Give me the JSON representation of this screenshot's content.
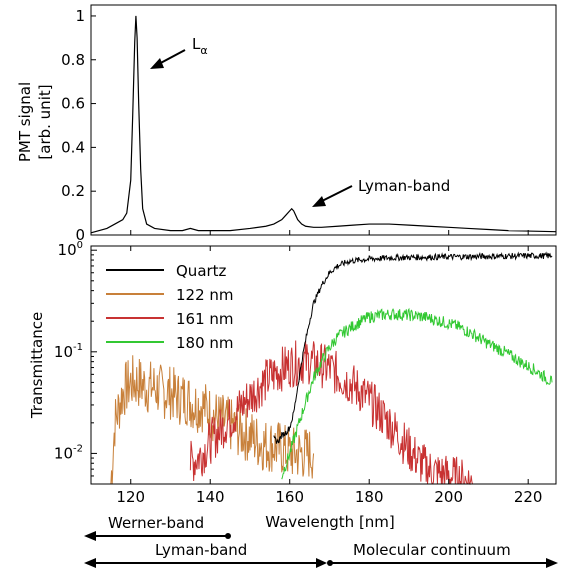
{
  "chart_data": [
    {
      "type": "line",
      "panel": "top",
      "xlim": [
        110,
        227
      ],
      "ylim": [
        0,
        1.05
      ],
      "yticks": [
        "0",
        "0.2",
        "0.4",
        "0.6",
        "0.8",
        "1"
      ],
      "ytick_values": [
        0,
        0.2,
        0.4,
        0.6,
        0.8,
        1
      ],
      "ylabel_line1": "PMT signal",
      "ylabel_line2": "[arb. unit]",
      "series": [
        {
          "color": "#000000",
          "x": [
            110,
            114,
            116,
            118,
            119,
            120,
            120.5,
            121,
            121.3,
            121.6,
            122,
            122.5,
            123,
            124,
            126,
            130,
            133,
            135,
            137,
            140,
            145,
            150,
            154,
            156,
            158,
            159,
            160,
            160.5,
            161,
            161.5,
            162,
            163,
            164,
            166,
            168,
            172,
            176,
            180,
            185,
            190,
            195,
            200,
            205,
            210,
            215,
            220,
            227
          ],
          "y": [
            0.01,
            0.03,
            0.05,
            0.07,
            0.1,
            0.25,
            0.55,
            0.88,
            1.0,
            0.9,
            0.6,
            0.3,
            0.12,
            0.05,
            0.03,
            0.02,
            0.02,
            0.03,
            0.02,
            0.02,
            0.02,
            0.03,
            0.04,
            0.05,
            0.07,
            0.09,
            0.11,
            0.12,
            0.11,
            0.09,
            0.07,
            0.05,
            0.04,
            0.035,
            0.035,
            0.04,
            0.045,
            0.05,
            0.05,
            0.045,
            0.04,
            0.035,
            0.03,
            0.025,
            0.02,
            0.018,
            0.015
          ]
        }
      ],
      "annotations": [
        {
          "label": "L",
          "subscript": "α",
          "x": 121.5,
          "y": 0.73
        },
        {
          "label": "Lyman-band",
          "x": 163,
          "y": 0.12
        }
      ]
    },
    {
      "type": "line",
      "panel": "bottom",
      "xlabel": "Wavelength [nm]",
      "ylabel": "Transmittance",
      "yscale": "log",
      "xlim": [
        110,
        227
      ],
      "ylim": [
        0.005,
        1.1
      ],
      "xticks": [
        "120",
        "140",
        "160",
        "180",
        "200",
        "220"
      ],
      "xtick_values": [
        120,
        140,
        160,
        180,
        200,
        220
      ],
      "yticks": [
        {
          "base": "10",
          "exp": "0",
          "value": 1
        },
        {
          "base": "10",
          "exp": "-1",
          "value": 0.1
        },
        {
          "base": "10",
          "exp": "-2",
          "value": 0.01
        }
      ],
      "legend_position": "top-left",
      "series": [
        {
          "name": "Quartz",
          "color": "#000000",
          "x": [
            156,
            157,
            158,
            159,
            160,
            161,
            162,
            163,
            164,
            165,
            166,
            168,
            170,
            172,
            175,
            180,
            185,
            190,
            200,
            210,
            220,
            226
          ],
          "y": [
            0.014,
            0.013,
            0.015,
            0.016,
            0.018,
            0.025,
            0.045,
            0.08,
            0.13,
            0.2,
            0.3,
            0.45,
            0.6,
            0.7,
            0.78,
            0.82,
            0.84,
            0.85,
            0.86,
            0.87,
            0.88,
            0.88
          ]
        },
        {
          "name": "122 nm",
          "color": "#c8803a",
          "x": [
            115,
            116,
            118,
            120,
            122,
            124,
            126,
            128,
            130,
            132,
            134,
            136,
            138,
            140,
            142,
            144,
            146,
            148,
            150,
            152,
            154,
            156,
            158,
            160,
            162,
            164,
            166
          ],
          "y": [
            0.005,
            0.02,
            0.04,
            0.05,
            0.05,
            0.045,
            0.045,
            0.04,
            0.04,
            0.035,
            0.035,
            0.03,
            0.03,
            0.025,
            0.022,
            0.02,
            0.018,
            0.016,
            0.015,
            0.013,
            0.012,
            0.012,
            0.011,
            0.01,
            0.01,
            0.01,
            0.01
          ]
        },
        {
          "name": "161 nm",
          "color": "#c83232",
          "x": [
            135,
            138,
            140,
            142,
            144,
            146,
            148,
            150,
            152,
            154,
            156,
            158,
            160,
            162,
            164,
            166,
            168,
            170,
            172,
            175,
            178,
            180,
            182,
            185,
            188,
            190,
            193,
            196,
            200,
            203,
            206
          ],
          "y": [
            0.008,
            0.01,
            0.013,
            0.016,
            0.02,
            0.024,
            0.03,
            0.036,
            0.044,
            0.052,
            0.06,
            0.068,
            0.074,
            0.078,
            0.08,
            0.078,
            0.074,
            0.068,
            0.06,
            0.05,
            0.04,
            0.033,
            0.027,
            0.02,
            0.014,
            0.011,
            0.008,
            0.0065,
            0.006,
            0.0055,
            0.005
          ]
        },
        {
          "name": "180 nm",
          "color": "#32c832",
          "x": [
            158,
            160,
            162,
            164,
            166,
            168,
            170,
            172,
            175,
            178,
            180,
            183,
            186,
            190,
            194,
            198,
            202,
            206,
            210,
            214,
            218,
            222,
            226
          ],
          "y": [
            0.006,
            0.01,
            0.018,
            0.032,
            0.055,
            0.08,
            0.11,
            0.14,
            0.17,
            0.2,
            0.22,
            0.23,
            0.235,
            0.23,
            0.22,
            0.2,
            0.18,
            0.15,
            0.12,
            0.1,
            0.08,
            0.065,
            0.05
          ]
        }
      ]
    }
  ],
  "bands": [
    {
      "label": "Werner-band",
      "from": 110,
      "to": 140
    },
    {
      "label": "Lyman-band",
      "from": 110,
      "to": 168
    },
    {
      "label": "Molecular continuum",
      "from": 170,
      "to": 227
    }
  ]
}
